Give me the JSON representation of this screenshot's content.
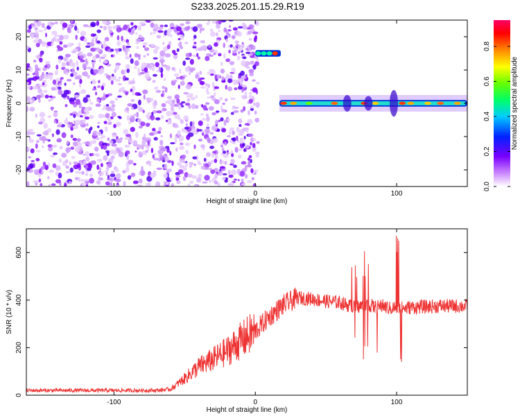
{
  "title": "S233.2025.201.15.29.R19",
  "chart_data": [
    {
      "type": "heatmap",
      "xlabel": "Height of straight line (km)",
      "ylabel": "Frequency (Hz)",
      "xlim": [
        -162,
        150
      ],
      "ylim": [
        -25,
        25
      ],
      "xticks": [
        -100,
        0,
        100
      ],
      "yticks": [
        20,
        10,
        0,
        -10,
        -20
      ],
      "colorbar": {
        "label": "Normalized spectral amplitude",
        "range": [
          0,
          0.95
        ],
        "ticks": [
          0.0,
          0.2,
          0.4,
          0.6,
          0.8
        ],
        "colormap": "rainbow (purple-blue-cyan-green-yellow-orange-red-magenta)"
      },
      "regions": [
        {
          "name": "noise",
          "x": [
            -162,
            2
          ],
          "y": [
            -25,
            25
          ],
          "amplitude": 0.1
        },
        {
          "name": "early-line",
          "x": [
            0,
            18
          ],
          "y": [
            14,
            16
          ],
          "amplitude": 0.6
        },
        {
          "name": "main-line",
          "x": [
            17,
            150
          ],
          "y": [
            -1,
            1
          ],
          "amplitude": 0.55
        }
      ]
    },
    {
      "type": "line",
      "xlabel": "Height of straight line (km)",
      "ylabel": "SNR (10 * v/v)",
      "xlim": [
        -162,
        150
      ],
      "ylim": [
        0,
        700
      ],
      "xticks": [
        -100,
        0,
        100
      ],
      "yticks": [
        0,
        200,
        400,
        600
      ],
      "color": "#ee3333",
      "series": [
        {
          "x": [
            -162,
            -100,
            -70,
            -60,
            -50,
            -40,
            -30,
            -20,
            -10,
            0,
            10,
            20,
            30,
            40,
            50,
            60,
            65,
            70,
            75,
            80,
            85,
            90,
            95,
            100,
            105,
            110,
            120,
            130,
            140,
            150
          ],
          "values": [
            20,
            20,
            20,
            25,
            70,
            120,
            150,
            185,
            230,
            270,
            330,
            380,
            410,
            405,
            395,
            390,
            380,
            370,
            375,
            380,
            370,
            375,
            365,
            370,
            365,
            370,
            372,
            375,
            375,
            375
          ]
        }
      ]
    }
  ]
}
